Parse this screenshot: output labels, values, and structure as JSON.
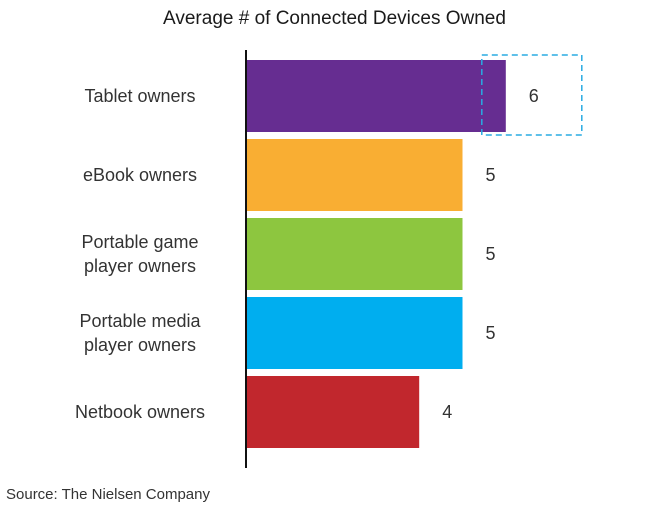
{
  "chart_data": {
    "type": "bar",
    "orientation": "horizontal",
    "title": "Average # of Connected Devices Owned",
    "categories": [
      [
        "Tablet owners"
      ],
      [
        "eBook owners"
      ],
      [
        "Portable game",
        "player owners"
      ],
      [
        "Portable media",
        "player owners"
      ],
      [
        "Netbook owners"
      ]
    ],
    "values": [
      6,
      5,
      5,
      5,
      4
    ],
    "data_labels": [
      "6",
      "5",
      "5",
      "5",
      "4"
    ],
    "colors": [
      "#662D91",
      "#F9AE33",
      "#8DC63F",
      "#00AEEF",
      "#C1272D"
    ],
    "highlight": {
      "category_index": 0,
      "style": "dashed-box",
      "color": "#29ABE2"
    },
    "xlim": [
      0,
      7
    ],
    "xlabel": "",
    "ylabel": "",
    "grid": false,
    "legend": "none"
  },
  "source": "Source: The Nielsen Company"
}
